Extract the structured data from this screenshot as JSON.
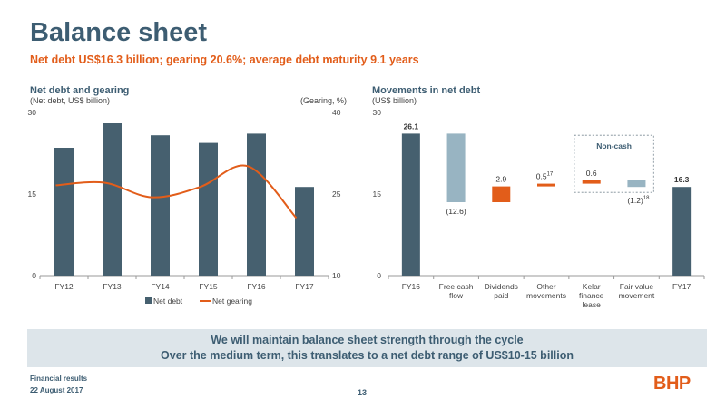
{
  "slide": {
    "title": "Balance sheet",
    "subtitle": "Net debt US$16.3 billion; gearing 20.6%; average debt maturity 9.1 years",
    "banner_line1": "We will maintain balance sheet strength through the cycle",
    "banner_line2": "Over the medium term, this translates to a net debt range of US$10-15 billion",
    "footer_line1": "Financial results",
    "footer_line2": "22 August 2017",
    "page_number": "13",
    "logo": "BHP"
  },
  "colors": {
    "title": "#3d5d72",
    "accent": "#e25d1a",
    "bar": "#46606f",
    "light_bar": "#98b4c2",
    "banner": "#dde5ea"
  },
  "left_panel": {
    "title": "Net debt and gearing",
    "sub_left": "(Net debt, US$ billion)",
    "sub_right": "(Gearing, %)"
  },
  "right_panel": {
    "title": "Movements in net debt",
    "sub": "(US$ billion)",
    "noncash_label": "Non-cash"
  },
  "chart_data": [
    {
      "type": "bar",
      "categories": [
        "FY12",
        "FY13",
        "FY14",
        "FY15",
        "FY16",
        "FY17"
      ],
      "series": [
        {
          "name": "Net debt",
          "type": "bar",
          "axis": "left",
          "values": [
            23.5,
            28.0,
            25.8,
            24.4,
            26.1,
            16.3
          ]
        },
        {
          "name": "Net gearing",
          "type": "line",
          "axis": "right",
          "values": [
            26.6,
            27.1,
            24.4,
            26.3,
            30.1,
            20.6
          ]
        }
      ],
      "title": "Net debt and gearing",
      "y_left_label": "(Net debt, US$ billion)",
      "y_right_label": "(Gearing, %)",
      "ylim_left": [
        0,
        30
      ],
      "ylim_right": [
        10,
        40
      ],
      "y_left_ticks": [
        "0",
        "15",
        "30"
      ],
      "y_right_ticks": [
        "10",
        "25",
        "40"
      ],
      "legend": "bottom",
      "grid": false
    },
    {
      "type": "waterfall",
      "title": "Movements in net debt",
      "ylabel": "(US$ billion)",
      "ylim": [
        0,
        30
      ],
      "y_ticks": [
        "0",
        "15",
        "30"
      ],
      "categories": [
        "FY16",
        "Free cash flow",
        "Dividends paid",
        "Other movements",
        "Kelar finance lease",
        "Fair value movement",
        "FY17"
      ],
      "steps": [
        {
          "label": "FY16",
          "kind": "total",
          "start": 0,
          "end": 26.1,
          "value_label": "26.1",
          "superscript": ""
        },
        {
          "label": "Free cash flow",
          "kind": "decrease",
          "start": 26.1,
          "end": 13.5,
          "value_label": "(12.6)",
          "superscript": ""
        },
        {
          "label": "Dividends paid",
          "kind": "increase",
          "start": 13.5,
          "end": 16.4,
          "value_label": "2.9",
          "superscript": ""
        },
        {
          "label": "Other movements",
          "kind": "increase",
          "start": 16.4,
          "end": 16.9,
          "value_label": "0.5",
          "superscript": "17"
        },
        {
          "label": "Kelar finance lease",
          "kind": "increase",
          "start": 16.9,
          "end": 17.5,
          "value_label": "0.6",
          "superscript": ""
        },
        {
          "label": "Fair value movement",
          "kind": "decrease",
          "start": 17.5,
          "end": 16.3,
          "value_label": "(1.2)",
          "superscript": "18"
        },
        {
          "label": "FY17",
          "kind": "total",
          "start": 0,
          "end": 16.3,
          "value_label": "16.3",
          "superscript": ""
        }
      ],
      "annotation": "Non-cash",
      "annotation_covers": [
        "Kelar finance lease",
        "Fair value movement"
      ],
      "grid": false
    }
  ]
}
